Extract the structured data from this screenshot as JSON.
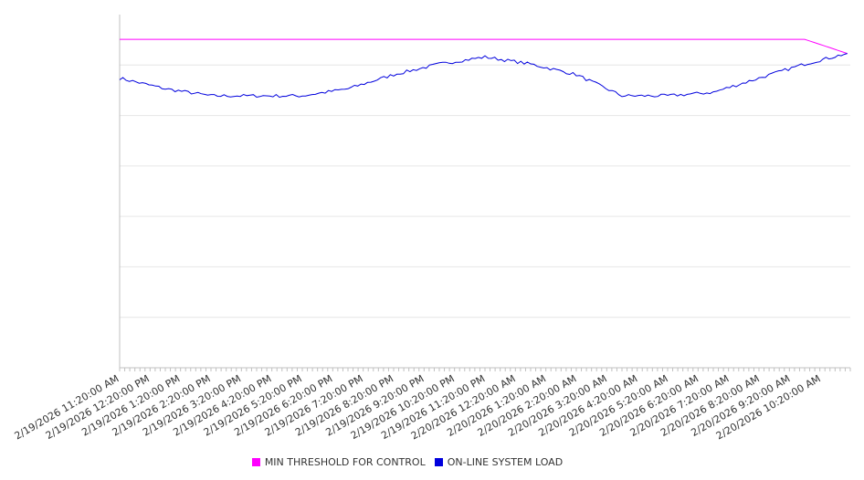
{
  "chart_data": {
    "type": "line",
    "title": "",
    "xlabel": "",
    "ylabel": "",
    "grid": true,
    "legend_position": "bottom",
    "x_tick_labels": [
      "2/19/2026 11:20:00 AM",
      "2/19/2026 12:20:00 PM",
      "2/19/2026 1:20:00 PM",
      "2/19/2026 2:20:00 PM",
      "2/19/2026 3:20:00 PM",
      "2/19/2026 4:20:00 PM",
      "2/19/2026 5:20:00 PM",
      "2/19/2026 6:20:00 PM",
      "2/19/2026 7:20:00 PM",
      "2/19/2026 8:20:00 PM",
      "2/19/2026 9:20:00 PM",
      "2/19/2026 10:20:00 PM",
      "2/19/2026 11:20:00 PM",
      "2/20/2026 12:20:00 AM",
      "2/20/2026 1:20:00 AM",
      "2/20/2026 2:20:00 AM",
      "2/20/2026 3:20:00 AM",
      "2/20/2026 4:20:00 AM",
      "2/20/2026 5:20:00 AM",
      "2/20/2026 6:20:00 AM",
      "2/20/2026 7:20:00 AM",
      "2/20/2026 8:20:00 AM",
      "2/20/2026 9:20:00 AM",
      "2/20/2026 10:20:00 AM"
    ],
    "x_hours": [
      0,
      1.5,
      3,
      4.5,
      6,
      7.5,
      9,
      10.5,
      12,
      13.5,
      15,
      16.5,
      18,
      19.5,
      21,
      22.5,
      23.9
    ],
    "series": [
      {
        "name": "MIN THRESHOLD FOR CONTROL",
        "color": "#ff00ff",
        "values": [
          93,
          93,
          93,
          93,
          93,
          93,
          93,
          93,
          93,
          93,
          93,
          93,
          93,
          93,
          93,
          93,
          89
        ]
      },
      {
        "name": "ON-LINE SYSTEM LOAD",
        "color": "#0000dd",
        "values": [
          82,
          79,
          77,
          77,
          77,
          79,
          83,
          86,
          88,
          86,
          83,
          77,
          77,
          78,
          82,
          86,
          89
        ]
      }
    ],
    "ylim": [
      0,
      100
    ],
    "y_gridlines": 7
  },
  "legend": {
    "items": [
      {
        "label": "MIN THRESHOLD FOR CONTROL",
        "color": "#ff00ff"
      },
      {
        "label": "ON-LINE SYSTEM LOAD",
        "color": "#0000dd"
      }
    ]
  }
}
